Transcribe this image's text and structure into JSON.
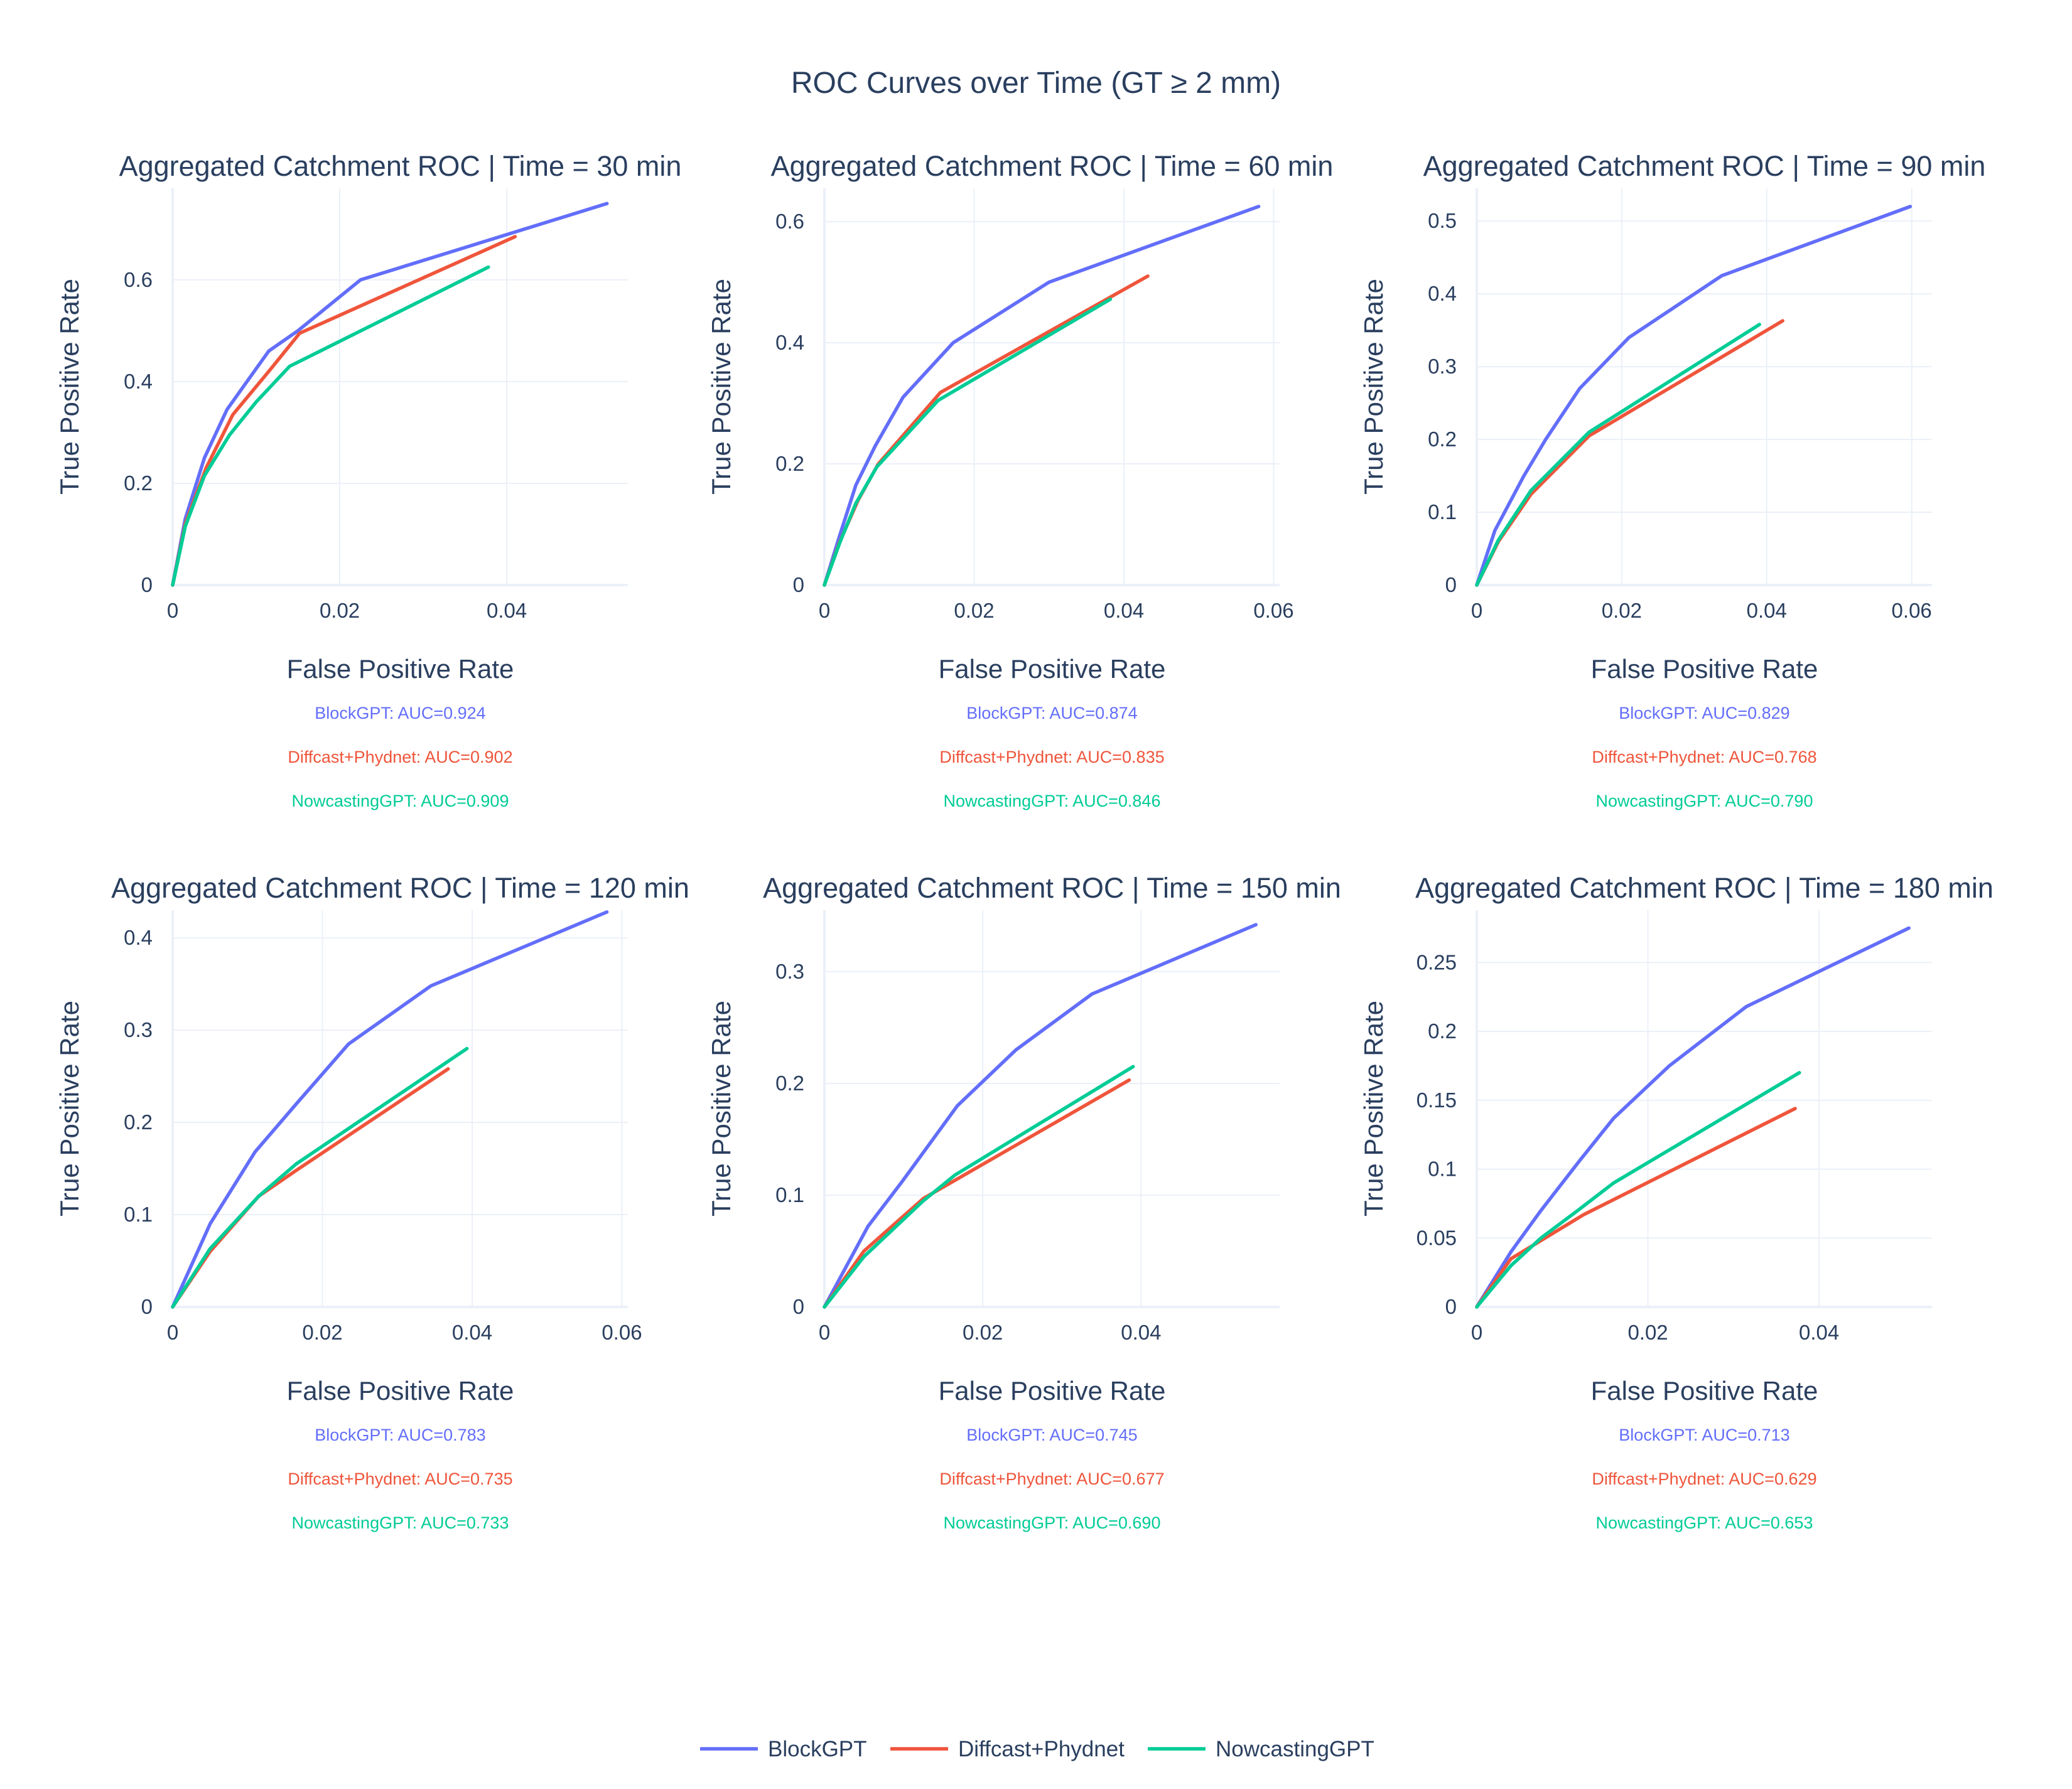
{
  "figure": {
    "title": "ROC Curves over Time (GT ≥ 2 mm)"
  },
  "colors": {
    "BlockGPT": "#636efa",
    "Diffcast+Phydnet": "#ef553b",
    "NowcastingGPT": "#00cc96",
    "grid": "#ebf0f8",
    "text": "#2a3f5f"
  },
  "legend": {
    "position": "bottom-center",
    "items": [
      "BlockGPT",
      "Diffcast+Phydnet",
      "NowcastingGPT"
    ]
  },
  "chart_data": [
    {
      "type": "line",
      "title": "Aggregated Catchment ROC | Time = 30 min",
      "xlabel": "False Positive Rate",
      "ylabel": "True Positive Rate",
      "xlim": [
        0,
        0.0545
      ],
      "ylim": [
        0,
        0.78
      ],
      "xticks": [
        "0",
        "0.02",
        "0.04"
      ],
      "xtick_values": [
        0,
        0.02,
        0.04
      ],
      "yticks": [
        "0",
        "0.2",
        "0.4",
        "0.6"
      ],
      "ytick_values": [
        0,
        0.2,
        0.4,
        0.6
      ],
      "grid": true,
      "series": [
        {
          "name": "BlockGPT",
          "x": [
            0,
            0.0015,
            0.0038,
            0.0065,
            0.0115,
            0.015,
            0.0225,
            0.052
          ],
          "y": [
            0,
            0.13,
            0.25,
            0.345,
            0.46,
            0.5,
            0.6,
            0.75
          ]
        },
        {
          "name": "Diffcast+Phydnet",
          "x": [
            0,
            0.0015,
            0.004,
            0.0072,
            0.0115,
            0.0152,
            0.041
          ],
          "y": [
            0,
            0.12,
            0.23,
            0.335,
            0.42,
            0.495,
            0.685
          ]
        },
        {
          "name": "NowcastingGPT",
          "x": [
            0,
            0.0015,
            0.0038,
            0.0068,
            0.01,
            0.014,
            0.0378
          ],
          "y": [
            0,
            0.115,
            0.215,
            0.295,
            0.36,
            0.43,
            0.625
          ]
        }
      ],
      "annotations": [
        "BlockGPT: AUC=0.924",
        "Diffcast+Phydnet: AUC=0.902",
        "NowcastingGPT: AUC=0.909"
      ]
    },
    {
      "type": "line",
      "title": "Aggregated Catchment ROC | Time = 60 min",
      "xlabel": "False Positive Rate",
      "ylabel": "True Positive Rate",
      "xlim": [
        0,
        0.0608
      ],
      "ylim": [
        0,
        0.655
      ],
      "xticks": [
        "0",
        "0.02",
        "0.04",
        "0.06"
      ],
      "xtick_values": [
        0,
        0.02,
        0.04,
        0.06
      ],
      "yticks": [
        "0",
        "0.2",
        "0.4",
        "0.6"
      ],
      "ytick_values": [
        0,
        0.2,
        0.4,
        0.6
      ],
      "grid": true,
      "series": [
        {
          "name": "BlockGPT",
          "x": [
            0,
            0.002,
            0.0042,
            0.0068,
            0.0105,
            0.0172,
            0.03,
            0.058
          ],
          "y": [
            0,
            0.08,
            0.165,
            0.23,
            0.31,
            0.4,
            0.5,
            0.625
          ]
        },
        {
          "name": "Diffcast+Phydnet",
          "x": [
            0,
            0.002,
            0.0045,
            0.0072,
            0.0155,
            0.0432
          ],
          "y": [
            0,
            0.07,
            0.14,
            0.2,
            0.318,
            0.51
          ]
        },
        {
          "name": "NowcastingGPT",
          "x": [
            0,
            0.002,
            0.0042,
            0.007,
            0.0152,
            0.0382
          ],
          "y": [
            0,
            0.068,
            0.135,
            0.195,
            0.305,
            0.472
          ]
        }
      ],
      "annotations": [
        "BlockGPT: AUC=0.874",
        "Diffcast+Phydnet: AUC=0.835",
        "NowcastingGPT: AUC=0.846"
      ]
    },
    {
      "type": "line",
      "title": "Aggregated Catchment ROC | Time = 90 min",
      "xlabel": "False Positive Rate",
      "ylabel": "True Positive Rate",
      "xlim": [
        0,
        0.0628
      ],
      "ylim": [
        0,
        0.545
      ],
      "xticks": [
        "0",
        "0.02",
        "0.04",
        "0.06"
      ],
      "xtick_values": [
        0,
        0.02,
        0.04,
        0.06
      ],
      "yticks": [
        "0",
        "0.1",
        "0.2",
        "0.3",
        "0.4",
        "0.5"
      ],
      "ytick_values": [
        0,
        0.1,
        0.2,
        0.3,
        0.4,
        0.5
      ],
      "grid": true,
      "series": [
        {
          "name": "BlockGPT",
          "x": [
            0,
            0.0025,
            0.0065,
            0.0095,
            0.0142,
            0.021,
            0.0338,
            0.0598
          ],
          "y": [
            0,
            0.075,
            0.15,
            0.2,
            0.27,
            0.34,
            0.425,
            0.52
          ]
        },
        {
          "name": "Diffcast+Phydnet",
          "x": [
            0,
            0.003,
            0.0075,
            0.0155,
            0.0422
          ],
          "y": [
            0,
            0.06,
            0.125,
            0.205,
            0.363
          ]
        },
        {
          "name": "NowcastingGPT",
          "x": [
            0,
            0.003,
            0.0075,
            0.0155,
            0.039
          ],
          "y": [
            0,
            0.062,
            0.13,
            0.21,
            0.358
          ]
        }
      ],
      "annotations": [
        "BlockGPT: AUC=0.829",
        "Diffcast+Phydnet: AUC=0.768",
        "NowcastingGPT: AUC=0.790"
      ]
    },
    {
      "type": "line",
      "title": "Aggregated Catchment ROC | Time = 120 min",
      "xlabel": "False Positive Rate",
      "ylabel": "True Positive Rate",
      "xlim": [
        0,
        0.0608
      ],
      "ylim": [
        0,
        0.43
      ],
      "xticks": [
        "0",
        "0.02",
        "0.04",
        "0.06"
      ],
      "xtick_values": [
        0,
        0.02,
        0.04,
        0.06
      ],
      "yticks": [
        "0",
        "0.1",
        "0.2",
        "0.3",
        "0.4"
      ],
      "ytick_values": [
        0,
        0.1,
        0.2,
        0.3,
        0.4
      ],
      "grid": true,
      "series": [
        {
          "name": "BlockGPT",
          "x": [
            0,
            0.005,
            0.011,
            0.0165,
            0.0235,
            0.0345,
            0.058
          ],
          "y": [
            0,
            0.09,
            0.168,
            0.22,
            0.285,
            0.348,
            0.428
          ]
        },
        {
          "name": "Diffcast+Phydnet",
          "x": [
            0,
            0.005,
            0.0115,
            0.0165,
            0.0368
          ],
          "y": [
            0,
            0.06,
            0.12,
            0.148,
            0.258
          ]
        },
        {
          "name": "NowcastingGPT",
          "x": [
            0,
            0.005,
            0.0115,
            0.0165,
            0.0393
          ],
          "y": [
            0,
            0.063,
            0.12,
            0.155,
            0.28
          ]
        }
      ],
      "annotations": [
        "BlockGPT: AUC=0.783",
        "Diffcast+Phydnet: AUC=0.735",
        "NowcastingGPT: AUC=0.733"
      ]
    },
    {
      "type": "line",
      "title": "Aggregated Catchment ROC | Time = 150 min",
      "xlabel": "False Positive Rate",
      "ylabel": "True Positive Rate",
      "xlim": [
        0,
        0.0575
      ],
      "ylim": [
        0,
        0.355
      ],
      "xticks": [
        "0",
        "0.02",
        "0.04"
      ],
      "xtick_values": [
        0,
        0.02,
        0.04
      ],
      "yticks": [
        "0",
        "0.1",
        "0.2",
        "0.3"
      ],
      "ytick_values": [
        0,
        0.1,
        0.2,
        0.3
      ],
      "grid": true,
      "series": [
        {
          "name": "BlockGPT",
          "x": [
            0,
            0.0055,
            0.0098,
            0.0168,
            0.0242,
            0.0338,
            0.0545
          ],
          "y": [
            0,
            0.072,
            0.112,
            0.18,
            0.23,
            0.28,
            0.342
          ]
        },
        {
          "name": "Diffcast+Phydnet",
          "x": [
            0,
            0.005,
            0.0125,
            0.0385
          ],
          "y": [
            0,
            0.05,
            0.097,
            0.203
          ]
        },
        {
          "name": "NowcastingGPT",
          "x": [
            0,
            0.005,
            0.0125,
            0.0165,
            0.039
          ],
          "y": [
            0,
            0.045,
            0.095,
            0.118,
            0.215
          ]
        }
      ],
      "annotations": [
        "BlockGPT: AUC=0.745",
        "Diffcast+Phydnet: AUC=0.677",
        "NowcastingGPT: AUC=0.690"
      ]
    },
    {
      "type": "line",
      "title": "Aggregated Catchment ROC | Time = 180 min",
      "xlabel": "False Positive Rate",
      "ylabel": "True Positive Rate",
      "xlim": [
        0,
        0.0532
      ],
      "ylim": [
        0,
        0.288
      ],
      "xticks": [
        "0",
        "0.02",
        "0.04"
      ],
      "xtick_values": [
        0,
        0.02,
        0.04
      ],
      "yticks": [
        "0",
        "0.05",
        "0.1",
        "0.15",
        "0.2",
        "0.25"
      ],
      "ytick_values": [
        0,
        0.05,
        0.1,
        0.15,
        0.2,
        0.25
      ],
      "grid": true,
      "series": [
        {
          "name": "BlockGPT",
          "x": [
            0,
            0.004,
            0.0075,
            0.012,
            0.016,
            0.0225,
            0.0315,
            0.0505
          ],
          "y": [
            0,
            0.04,
            0.07,
            0.106,
            0.137,
            0.175,
            0.218,
            0.275
          ]
        },
        {
          "name": "Diffcast+Phydnet",
          "x": [
            0,
            0.004,
            0.0125,
            0.0372
          ],
          "y": [
            0,
            0.035,
            0.067,
            0.144
          ]
        },
        {
          "name": "NowcastingGPT",
          "x": [
            0,
            0.004,
            0.0075,
            0.0118,
            0.016,
            0.0377
          ],
          "y": [
            0,
            0.03,
            0.05,
            0.07,
            0.09,
            0.17
          ]
        }
      ],
      "annotations": [
        "BlockGPT: AUC=0.713",
        "Diffcast+Phydnet: AUC=0.629",
        "NowcastingGPT: AUC=0.653"
      ]
    }
  ]
}
